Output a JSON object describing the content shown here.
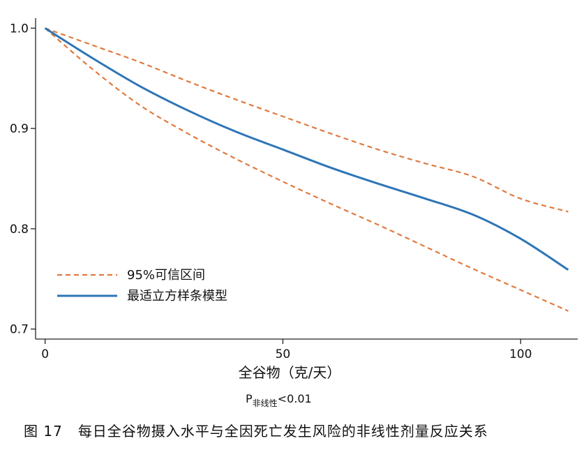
{
  "chart_data": {
    "type": "line",
    "xlabel": "全谷物（克/天）",
    "ylabel": "",
    "xlim": [
      -2,
      112
    ],
    "ylim": [
      0.69,
      1.01
    ],
    "xticks": [
      0,
      50,
      100
    ],
    "yticks": [
      0.7,
      0.8,
      0.9,
      1.0
    ],
    "xtick_labels": [
      "0",
      "50",
      "100"
    ],
    "ytick_labels": [
      "0.7",
      "0.8",
      "0.9",
      "1.0"
    ],
    "grid": false,
    "legend_position": "bottom-left",
    "series": [
      {
        "name": "95%可信区间",
        "style": "dashed",
        "color": "#E07A3F",
        "x": [
          0,
          10,
          20,
          30,
          40,
          50,
          60,
          70,
          80,
          90,
          100,
          110
        ],
        "y": [
          1.0,
          0.983,
          0.966,
          0.947,
          0.929,
          0.912,
          0.895,
          0.879,
          0.865,
          0.852,
          0.83,
          0.817
        ]
      },
      {
        "name": "",
        "style": "dashed",
        "color": "#E07A3F",
        "x": [
          0,
          10,
          20,
          30,
          40,
          50,
          60,
          70,
          80,
          90,
          100,
          110
        ],
        "y": [
          1.0,
          0.959,
          0.923,
          0.895,
          0.87,
          0.847,
          0.825,
          0.804,
          0.782,
          0.76,
          0.739,
          0.718
        ]
      },
      {
        "name": "最适立方样条模型",
        "style": "solid",
        "color": "#2E75B6",
        "x": [
          0,
          10,
          20,
          30,
          40,
          50,
          60,
          70,
          80,
          90,
          100,
          110
        ],
        "y": [
          1.0,
          0.97,
          0.942,
          0.918,
          0.897,
          0.879,
          0.861,
          0.845,
          0.83,
          0.814,
          0.79,
          0.759
        ]
      }
    ],
    "legend": [
      {
        "label": "95%可信区间",
        "style": "dashed",
        "color": "#E07A3F"
      },
      {
        "label": "最适立方样条模型",
        "style": "solid",
        "color": "#2E75B6"
      }
    ],
    "p_note": {
      "main": "P",
      "sub": "非线性",
      "rest": "<0.01"
    }
  },
  "caption": {
    "number": "图 17",
    "text": "每日全谷物摄入水平与全因死亡发生风险的非线性剂量反应关系"
  }
}
